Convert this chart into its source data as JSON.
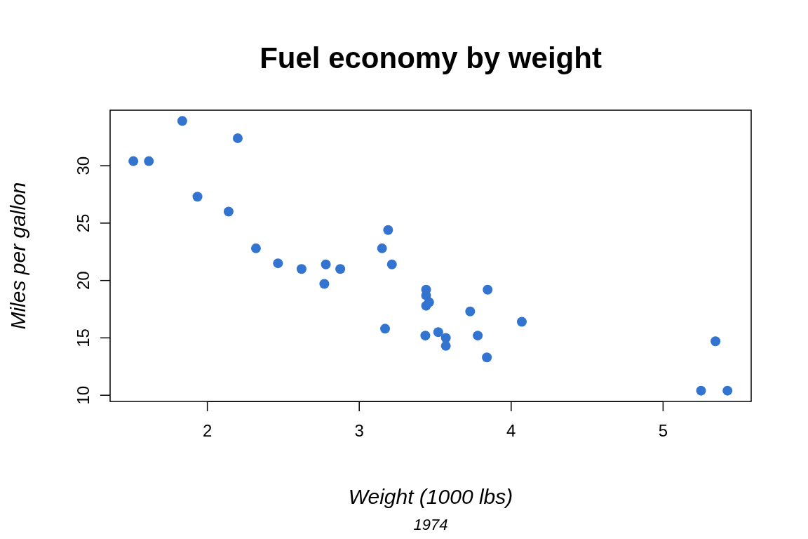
{
  "chart_data": {
    "type": "scatter",
    "title": "Fuel economy by weight",
    "xlabel": "Weight (1000 lbs)",
    "ylabel": "Miles per gallon",
    "annotations": [
      "1974"
    ],
    "x": [
      2.62,
      2.875,
      2.32,
      3.215,
      3.44,
      3.46,
      3.57,
      3.19,
      3.15,
      3.44,
      3.44,
      4.07,
      3.73,
      3.78,
      5.25,
      5.424,
      5.345,
      2.2,
      1.615,
      1.835,
      2.465,
      3.52,
      3.435,
      3.84,
      3.845,
      1.935,
      2.14,
      1.513,
      3.17,
      2.77,
      3.57,
      2.78
    ],
    "series": [
      {
        "color": "#3274d0",
        "values": [
          21.0,
          21.0,
          22.8,
          21.4,
          18.7,
          18.1,
          14.3,
          24.4,
          22.8,
          19.2,
          17.8,
          16.4,
          17.3,
          15.2,
          10.4,
          10.4,
          14.7,
          32.4,
          30.4,
          33.9,
          21.5,
          15.5,
          15.2,
          13.3,
          19.2,
          27.3,
          26.0,
          30.4,
          15.8,
          19.7,
          15.0,
          21.4
        ]
      }
    ],
    "xlim": [
      1.36,
      5.58
    ],
    "ylim": [
      9.46,
      34.84
    ],
    "xticks": [
      2,
      3,
      4,
      5
    ],
    "yticks": [
      10,
      15,
      20,
      25,
      30
    ],
    "marker": "circle"
  }
}
